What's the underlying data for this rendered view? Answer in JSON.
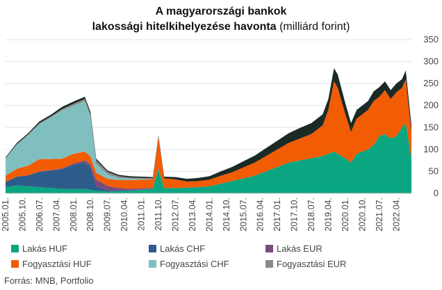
{
  "title_line1": "A magyarországi bankok",
  "title_line2_bold": "lakossági hitelkihelyezése havonta",
  "title_line2_unit": "(milliárd forint)",
  "source": "Forrás: MNB, Portfolio",
  "colors": {
    "lakas_huf": "#0aa681",
    "lakas_chf": "#2e5c8a",
    "lakas_eur": "#7b4a7d",
    "fogy_huf": "#f25c05",
    "fogy_chf": "#7fbfbf",
    "fogy_eur": "#8a8a8a",
    "other": "#1c2a26",
    "grid": "#e3e3e3",
    "axis_text": "#444444"
  },
  "chart_data": {
    "type": "area",
    "stacked": true,
    "title": "A magyarországi bankok lakossági hitelkihelyezése havonta (milliárd forint)",
    "xlabel": "",
    "ylabel": "",
    "ylim": [
      0,
      350
    ],
    "yticks": [
      0,
      50,
      100,
      150,
      200,
      250,
      300,
      350
    ],
    "y_axis_side": "right",
    "grid": true,
    "legend_position": "bottom",
    "x_start": "2005.01.",
    "x_end": "2022.12.",
    "x_tick_labels": [
      "2005.01.",
      "2005.10.",
      "2006.07.",
      "2007.04.",
      "2008.01.",
      "2008.10.",
      "2009.07.",
      "2010.04.",
      "2011.01.",
      "2011.10.",
      "2012.07.",
      "2013.04.",
      "2014.01.",
      "2014.10.",
      "2015.07.",
      "2016.04.",
      "2017.01.",
      "2017.10.",
      "2018.07.",
      "2019.04.",
      "2020.01.",
      "2020.10.",
      "2021.07.",
      "2022.04."
    ],
    "x": [
      "2005.01.",
      "2005.07.",
      "2006.01.",
      "2006.07.",
      "2007.01.",
      "2007.07.",
      "2008.01.",
      "2008.07.",
      "2008.10.",
      "2009.01.",
      "2009.07.",
      "2010.01.",
      "2010.07.",
      "2011.01.",
      "2011.07.",
      "2011.10.",
      "2012.01.",
      "2012.07.",
      "2013.01.",
      "2013.07.",
      "2014.01.",
      "2014.07.",
      "2015.01.",
      "2015.07.",
      "2016.01.",
      "2016.07.",
      "2017.01.",
      "2017.07.",
      "2018.01.",
      "2018.07.",
      "2019.01.",
      "2019.04.",
      "2019.07.",
      "2019.09.",
      "2020.01.",
      "2020.04.",
      "2020.07.",
      "2021.01.",
      "2021.04.",
      "2021.07.",
      "2021.10.",
      "2022.01.",
      "2022.04.",
      "2022.07.",
      "2022.09.",
      "2022.12."
    ],
    "series": [
      {
        "name": "Lakás HUF",
        "key": "lakas_huf",
        "values": [
          14,
          18,
          16,
          14,
          12,
          10,
          10,
          10,
          8,
          6,
          4,
          5,
          6,
          8,
          10,
          55,
          12,
          12,
          13,
          14,
          16,
          22,
          28,
          34,
          40,
          50,
          60,
          70,
          75,
          80,
          85,
          90,
          95,
          90,
          80,
          70,
          90,
          100,
          110,
          130,
          135,
          125,
          130,
          150,
          160,
          80
        ]
      },
      {
        "name": "Lakás CHF",
        "key": "lakas_chf",
        "values": [
          12,
          20,
          25,
          35,
          40,
          45,
          55,
          60,
          50,
          10,
          3,
          2,
          1,
          1,
          1,
          1,
          0,
          0,
          0,
          0,
          0,
          0,
          0,
          0,
          0,
          0,
          0,
          0,
          0,
          0,
          0,
          0,
          0,
          0,
          0,
          0,
          0,
          0,
          0,
          0,
          0,
          0,
          0,
          0,
          0,
          0
        ]
      },
      {
        "name": "Lakás EUR",
        "key": "lakas_eur",
        "values": [
          0,
          0,
          0,
          1,
          1,
          2,
          3,
          5,
          8,
          15,
          10,
          5,
          3,
          2,
          1,
          1,
          0,
          0,
          0,
          0,
          0,
          0,
          0,
          0,
          0,
          0,
          0,
          0,
          0,
          0,
          0,
          0,
          0,
          0,
          0,
          0,
          0,
          0,
          0,
          0,
          0,
          0,
          0,
          0,
          0,
          0
        ]
      },
      {
        "name": "Fogyasztási HUF",
        "key": "fogy_huf",
        "values": [
          14,
          18,
          22,
          28,
          25,
          22,
          22,
          20,
          18,
          16,
          16,
          18,
          20,
          20,
          20,
          70,
          22,
          20,
          14,
          14,
          15,
          18,
          20,
          25,
          30,
          35,
          40,
          45,
          50,
          55,
          70,
          100,
          160,
          150,
          100,
          70,
          80,
          90,
          100,
          90,
          100,
          90,
          100,
          90,
          100,
          60
        ]
      },
      {
        "name": "Fogyasztási CHF",
        "key": "fogy_chf",
        "values": [
          40,
          55,
          70,
          80,
          95,
          110,
          110,
          115,
          90,
          20,
          10,
          5,
          3,
          2,
          1,
          1,
          0,
          0,
          0,
          0,
          0,
          0,
          0,
          0,
          0,
          0,
          0,
          0,
          0,
          0,
          0,
          0,
          0,
          0,
          0,
          0,
          0,
          0,
          0,
          0,
          0,
          0,
          0,
          0,
          0,
          0
        ]
      },
      {
        "name": "Fogyasztási EUR",
        "key": "fogy_eur",
        "values": [
          0,
          1,
          1,
          2,
          2,
          3,
          4,
          5,
          6,
          8,
          6,
          4,
          3,
          2,
          1,
          1,
          0,
          0,
          0,
          0,
          0,
          0,
          0,
          0,
          0,
          0,
          0,
          0,
          0,
          0,
          0,
          0,
          0,
          0,
          0,
          0,
          0,
          0,
          0,
          0,
          0,
          0,
          0,
          0,
          0,
          0
        ]
      },
      {
        "key": "other",
        "values": [
          2,
          3,
          3,
          4,
          4,
          5,
          5,
          5,
          5,
          4,
          3,
          3,
          3,
          3,
          3,
          3,
          4,
          5,
          6,
          7,
          8,
          10,
          12,
          14,
          16,
          18,
          20,
          22,
          24,
          25,
          25,
          25,
          30,
          30,
          25,
          20,
          20,
          20,
          22,
          22,
          20,
          20,
          20,
          20,
          20,
          15
        ]
      }
    ]
  },
  "legend": [
    {
      "label": "Lakás HUF",
      "color_key": "lakas_huf"
    },
    {
      "label": "Lakás CHF",
      "color_key": "lakas_chf"
    },
    {
      "label": "Lakás EUR",
      "color_key": "lakas_eur"
    },
    {
      "label": "Fogyasztási HUF",
      "color_key": "fogy_huf"
    },
    {
      "label": "Fogyasztási CHF",
      "color_key": "fogy_chf"
    },
    {
      "label": "Fogyasztási EUR",
      "color_key": "fogy_eur"
    }
  ]
}
